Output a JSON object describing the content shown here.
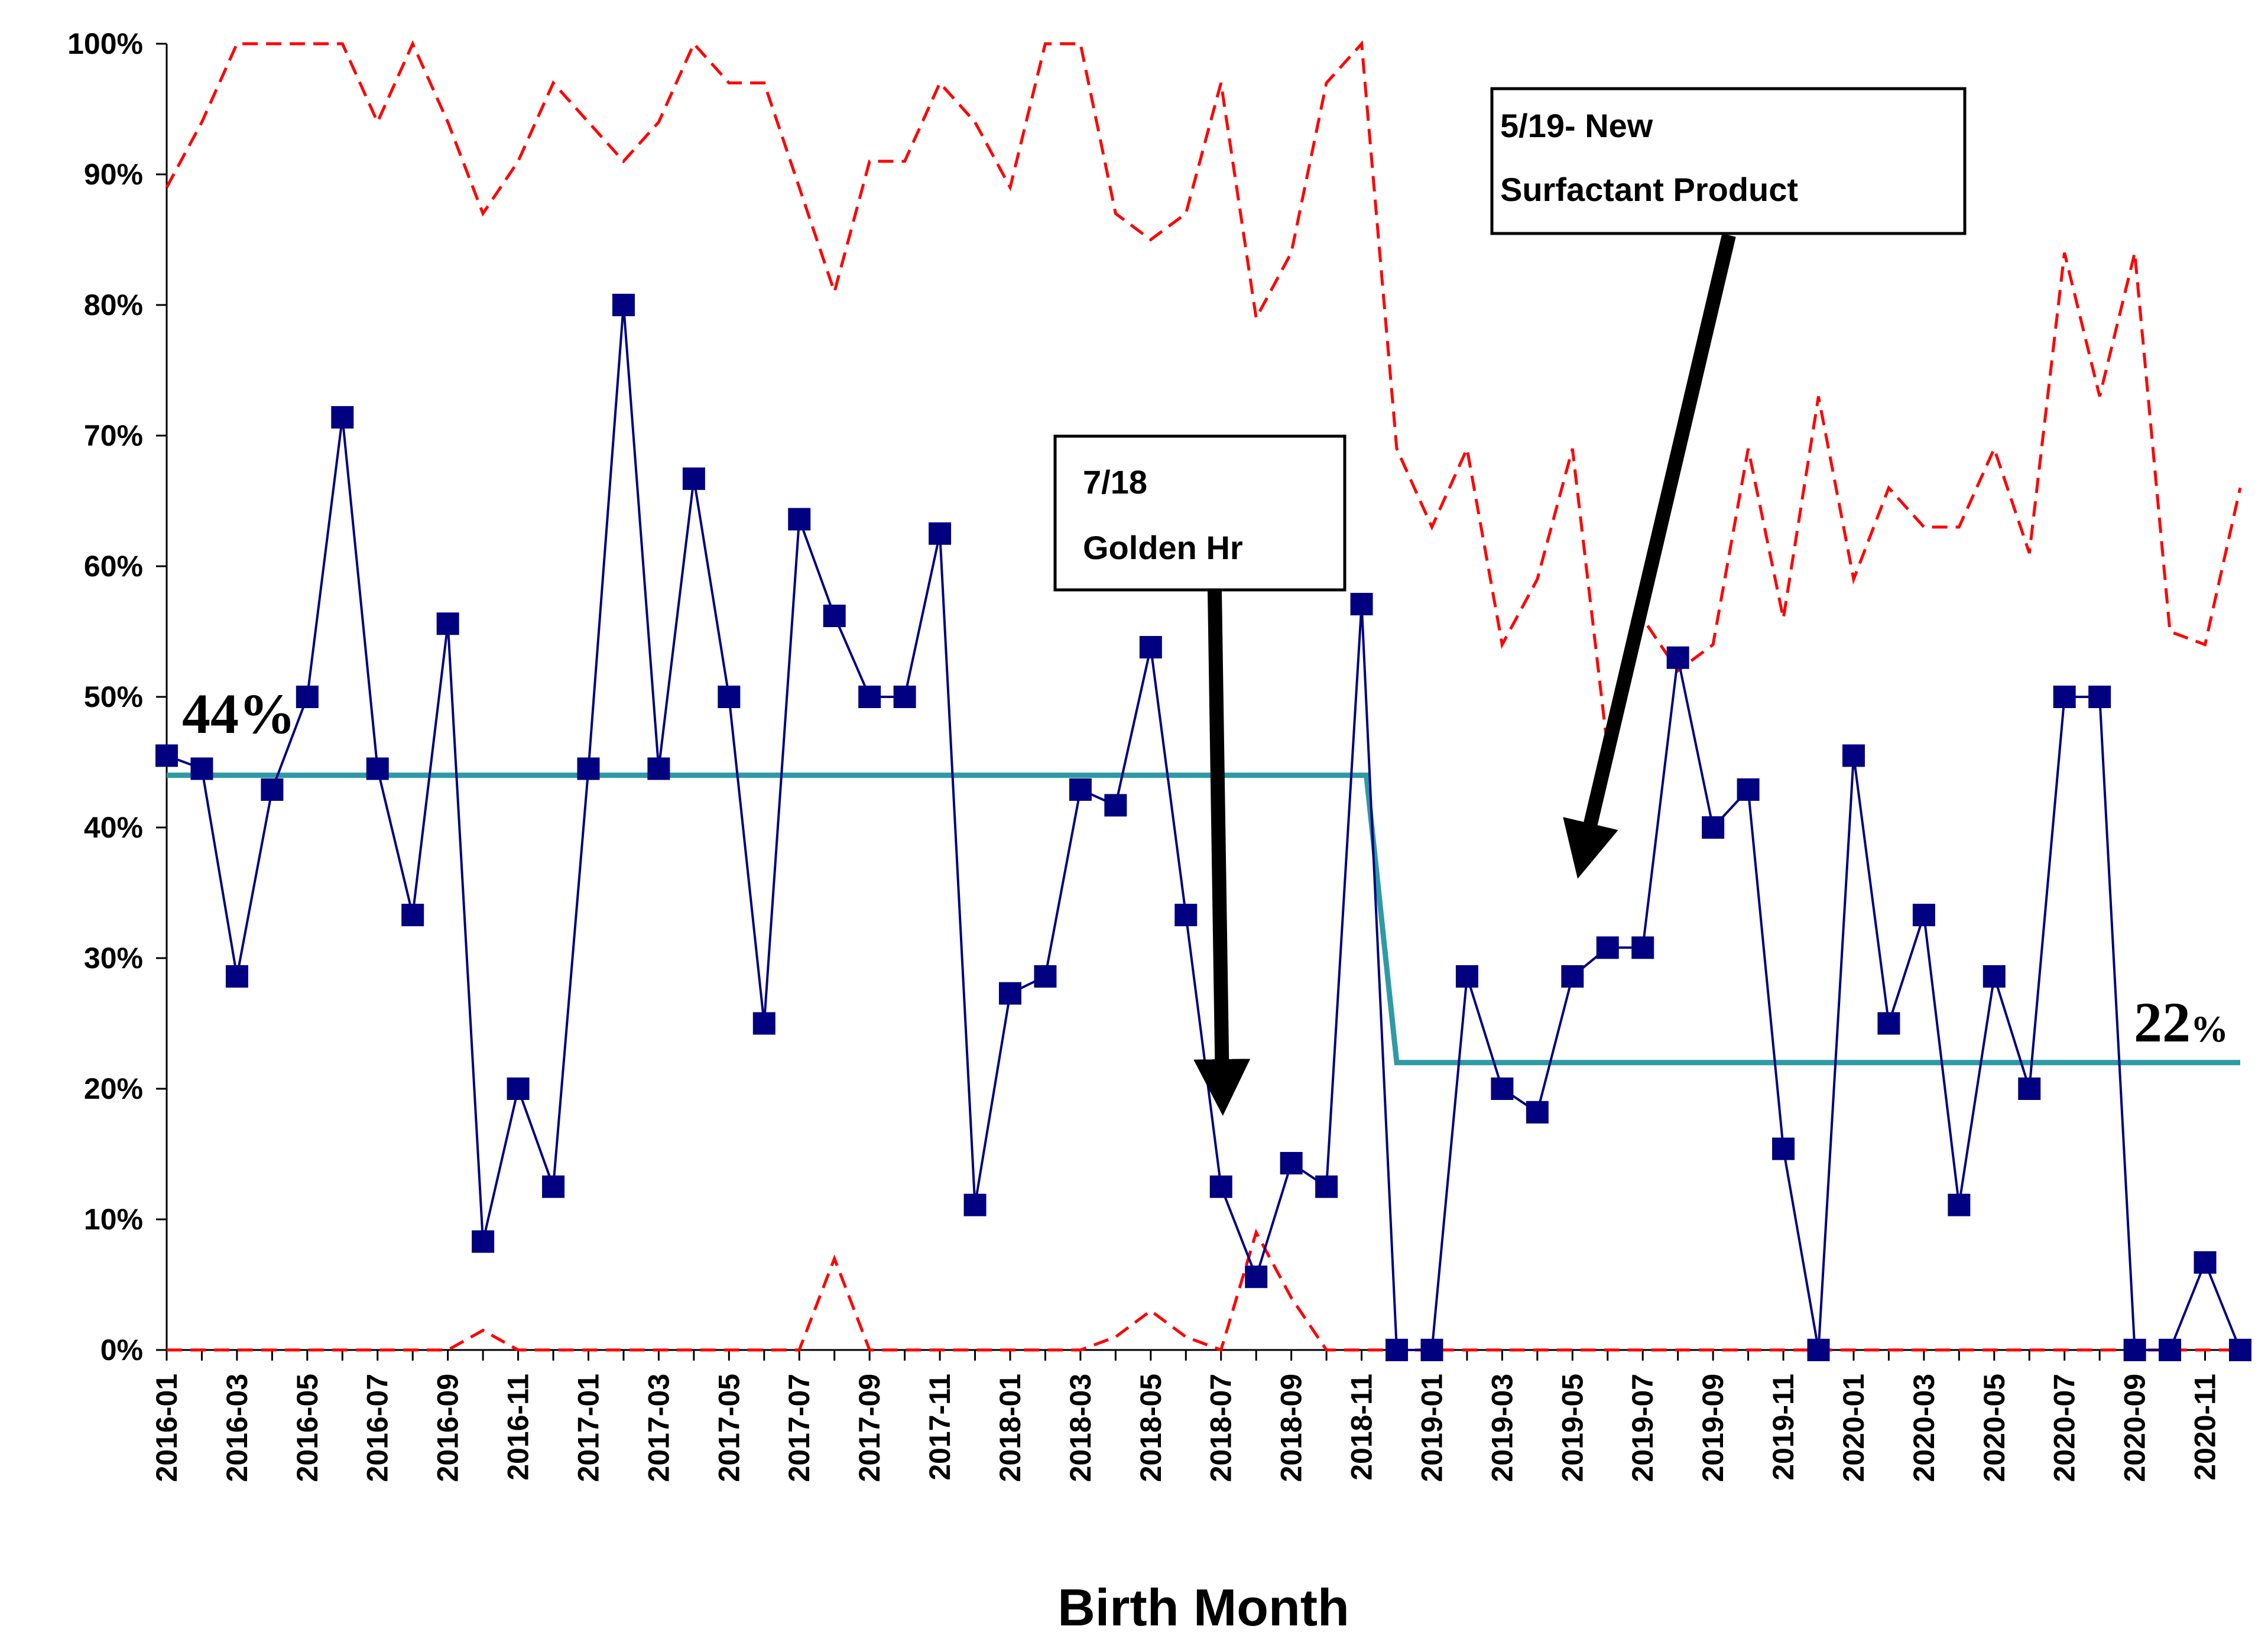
{
  "chart_data": {
    "type": "line",
    "xlabel": "Birth Month",
    "ylabel": "",
    "ylim": [
      0,
      100
    ],
    "y_ticks": [
      "0%",
      "10%",
      "20%",
      "30%",
      "40%",
      "50%",
      "60%",
      "70%",
      "80%",
      "90%",
      "100%"
    ],
    "x_tick_labels": [
      "2016-01",
      "2016-03",
      "2016-05",
      "2016-07",
      "2016-09",
      "2016-11",
      "2017-01",
      "2017-03",
      "2017-05",
      "2017-07",
      "2017-09",
      "2017-11",
      "2018-01",
      "2018-03",
      "2018-05",
      "2018-07",
      "2018-09",
      "2018-11",
      "2019-01",
      "2019-03",
      "2019-05",
      "2019-07",
      "2019-09",
      "2019-11",
      "2020-01",
      "2020-03",
      "2020-05",
      "2020-07",
      "2020-09",
      "2020-11"
    ],
    "categories": [
      "2016-01",
      "2016-02",
      "2016-03",
      "2016-04",
      "2016-05",
      "2016-06",
      "2016-07",
      "2016-08",
      "2016-09",
      "2016-10",
      "2016-11",
      "2016-12",
      "2017-01",
      "2017-02",
      "2017-03",
      "2017-04",
      "2017-05",
      "2017-06",
      "2017-07",
      "2017-08",
      "2017-09",
      "2017-10",
      "2017-11",
      "2017-12",
      "2018-01",
      "2018-02",
      "2018-03",
      "2018-04",
      "2018-05",
      "2018-06",
      "2018-07",
      "2018-08",
      "2018-09",
      "2018-10",
      "2018-11",
      "2018-12",
      "2019-01",
      "2019-02",
      "2019-03",
      "2019-04",
      "2019-05",
      "2019-06",
      "2019-07",
      "2019-08",
      "2019-09",
      "2019-10",
      "2019-11",
      "2019-12",
      "2020-01",
      "2020-02",
      "2020-03",
      "2020-04",
      "2020-05",
      "2020-06",
      "2020-07",
      "2020-08",
      "2020-09",
      "2020-10",
      "2020-11",
      "2020-12"
    ],
    "series": [
      {
        "role": "data",
        "color": "#000080",
        "values": [
          45.5,
          44.5,
          28.6,
          42.9,
          50,
          71.4,
          44.5,
          33.3,
          55.6,
          8.3,
          20,
          12.5,
          44.5,
          80,
          44.5,
          66.7,
          50,
          25,
          63.6,
          56.2,
          50,
          50,
          62.5,
          11.1,
          27.3,
          28.6,
          42.9,
          41.7,
          53.8,
          33.3,
          12.5,
          5.6,
          14.3,
          12.5,
          57.1,
          0,
          0,
          28.6,
          20,
          18.2,
          28.6,
          30.8,
          30.8,
          53,
          40,
          42.9,
          15.4,
          0,
          45.5,
          25,
          33.3,
          11.1,
          28.6,
          20,
          50,
          50,
          0,
          0,
          6.7,
          0
        ]
      },
      {
        "role": "center-line",
        "color": "#2E9AA6",
        "values": [
          44,
          44,
          44,
          44,
          44,
          44,
          44,
          44,
          44,
          44,
          44,
          44,
          44,
          44,
          44,
          44,
          44,
          44,
          44,
          44,
          44,
          44,
          44,
          44,
          44,
          44,
          44,
          44,
          44,
          44,
          44,
          44,
          44,
          44,
          44,
          22,
          22,
          22,
          22,
          22,
          22,
          22,
          22,
          22,
          22,
          22,
          22,
          22,
          22,
          22,
          22,
          22,
          22,
          22,
          22,
          22,
          22,
          22,
          22,
          22
        ]
      },
      {
        "role": "upper-control-limit",
        "color": "#FF0000",
        "values": [
          89,
          94,
          100,
          100,
          100,
          100,
          94,
          100,
          94,
          87,
          91,
          97,
          94,
          91,
          94,
          100,
          97,
          97,
          89,
          81,
          91,
          91,
          97,
          94,
          89,
          100,
          100,
          87,
          85,
          87,
          97,
          79,
          84,
          97,
          100,
          69,
          63,
          69,
          54,
          59,
          69,
          46,
          56,
          52,
          54,
          69,
          56,
          73,
          59,
          66,
          63,
          63,
          69,
          61,
          84,
          73,
          84,
          55,
          54,
          66
        ]
      },
      {
        "role": "lower-control-limit",
        "color": "#FF0000",
        "values": [
          0,
          0,
          0,
          0,
          0,
          0,
          0,
          0,
          0,
          1.5,
          0,
          0,
          0,
          0,
          0,
          0,
          0,
          0,
          0,
          7,
          0,
          0,
          0,
          0,
          0,
          0,
          0,
          1,
          3,
          1,
          0,
          9,
          4,
          0,
          0,
          0,
          0,
          0,
          0,
          0,
          0,
          0,
          0,
          0,
          0,
          0,
          0,
          0,
          0,
          0,
          0,
          0,
          0,
          0,
          0,
          0,
          0,
          0,
          0,
          0
        ]
      }
    ],
    "annotations": {
      "center_before_label": "44%",
      "center_after_number": "22",
      "center_after_unit": "%",
      "golden_hour_line1": "7/18",
      "golden_hour_line2": "Golden Hr",
      "surfactant_line1": "5/19- New",
      "surfactant_line2": "Surfactant Product"
    }
  }
}
